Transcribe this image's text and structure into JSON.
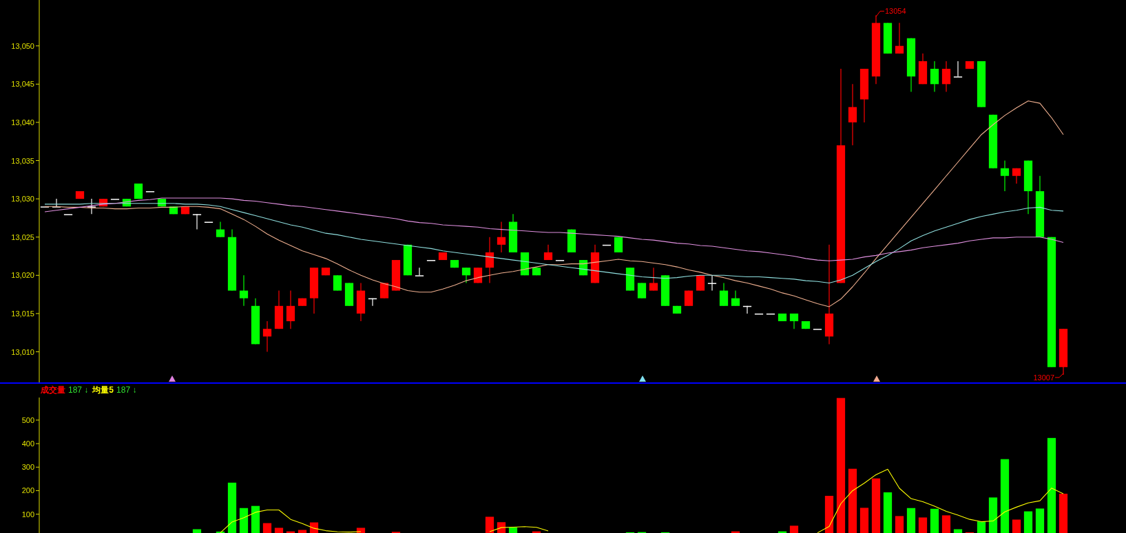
{
  "chart_data": [
    {
      "type": "candlestick",
      "categories": [
        null,
        null,
        null,
        null,
        null,
        null,
        null,
        null,
        null,
        null,
        null,
        null,
        null,
        null,
        null,
        null,
        null,
        null,
        null,
        null,
        null,
        null,
        null,
        null,
        null,
        null,
        null,
        null,
        null,
        null,
        null,
        null,
        null,
        null,
        null,
        null,
        null,
        null,
        null,
        null,
        null,
        null,
        null,
        null,
        null,
        null,
        null,
        null,
        null,
        null,
        null,
        null,
        null,
        null,
        null,
        null,
        null,
        null,
        null,
        null,
        null,
        null,
        null,
        null,
        null,
        null,
        null,
        null,
        null,
        null,
        null,
        null,
        null,
        null,
        null,
        null,
        null,
        null,
        null,
        null,
        null,
        null,
        null,
        null,
        null,
        null,
        null,
        null
      ],
      "ohlc": [
        [
          13029,
          13029,
          13029,
          13029
        ],
        [
          13029,
          13030,
          13029,
          13029
        ],
        [
          13028,
          13028,
          13028,
          13028
        ],
        [
          13030,
          13031,
          13030,
          13031
        ],
        [
          13029,
          13030,
          13028,
          13029
        ],
        [
          13029,
          13030,
          13029,
          13030
        ],
        [
          13030,
          13030,
          13030,
          13030
        ],
        [
          13030,
          13030,
          13029,
          13029
        ],
        [
          13032,
          13032,
          13030,
          13030
        ],
        [
          13031,
          13031,
          13031,
          13031
        ],
        [
          13030,
          13030,
          13029,
          13029
        ],
        [
          13029,
          13029,
          13028,
          13028
        ],
        [
          13028,
          13029,
          13028,
          13029
        ],
        [
          13028,
          13028,
          13026,
          13028
        ],
        [
          13027,
          13027,
          13027,
          13027
        ],
        [
          13026,
          13027,
          13025,
          13025
        ],
        [
          13025,
          13026,
          13018,
          13018
        ],
        [
          13018,
          13020,
          13016,
          13017
        ],
        [
          13016,
          13017,
          13011,
          13011
        ],
        [
          13012,
          13014,
          13010,
          13013
        ],
        [
          13013,
          13018,
          13013,
          13016
        ],
        [
          13014,
          13018,
          13013,
          13016
        ],
        [
          13016,
          13017,
          13016,
          13017
        ],
        [
          13017,
          13021,
          13015,
          13021
        ],
        [
          13020,
          13021,
          13020,
          13021
        ],
        [
          13020,
          13020,
          13018,
          13018
        ],
        [
          13019,
          13019,
          13016,
          13016
        ],
        [
          13015,
          13019,
          13014,
          13018
        ],
        [
          13017,
          13017,
          13016,
          13017
        ],
        [
          13017,
          13019,
          13017,
          13019
        ],
        [
          13018,
          13022,
          13018,
          13022
        ],
        [
          13024,
          13024,
          13020,
          13020
        ],
        [
          13020,
          13021,
          13020,
          13020
        ],
        [
          13022,
          13022,
          13022,
          13022
        ],
        [
          13022,
          13023,
          13022,
          13023
        ],
        [
          13022,
          13022,
          13021,
          13021
        ],
        [
          13021,
          13021,
          13019,
          13020
        ],
        [
          13019,
          13021,
          13019,
          13021
        ],
        [
          13021,
          13025,
          13019,
          13023
        ],
        [
          13024,
          13027,
          13023,
          13025
        ],
        [
          13027,
          13028,
          13023,
          13023
        ],
        [
          13023,
          13023,
          13020,
          13020
        ],
        [
          13021,
          13021,
          13020,
          13020
        ],
        [
          13022,
          13024,
          13022,
          13023
        ],
        [
          13022,
          13022,
          13022,
          13022
        ],
        [
          13026,
          13026,
          13023,
          13023
        ],
        [
          13022,
          13022,
          13020,
          13020
        ],
        [
          13019,
          13024,
          13019,
          13023
        ],
        [
          13024,
          13024,
          13024,
          13024
        ],
        [
          13025,
          13025,
          13023,
          13023
        ],
        [
          13021,
          13021,
          13018,
          13018
        ],
        [
          13019,
          13019,
          13017,
          13017
        ],
        [
          13018,
          13021,
          13018,
          13019
        ],
        [
          13020,
          13020,
          13016,
          13016
        ],
        [
          13016,
          13016,
          13015,
          13015
        ],
        [
          13016,
          13018,
          13016,
          13018
        ],
        [
          13018,
          13020,
          13018,
          13020
        ],
        [
          13019,
          13020,
          13018,
          13019
        ],
        [
          13018,
          13019,
          13016,
          13016
        ],
        [
          13017,
          13018,
          13016,
          13016
        ],
        [
          13016,
          13016,
          13015,
          13016
        ],
        [
          13015,
          13015,
          13015,
          13015
        ],
        [
          13015,
          13015,
          13015,
          13015
        ],
        [
          13015,
          13015,
          13014,
          13014
        ],
        [
          13015,
          13015,
          13013,
          13014
        ],
        [
          13014,
          13014,
          13013,
          13013
        ],
        [
          13013,
          13013,
          13013,
          13013
        ],
        [
          13012,
          13024,
          13011,
          13015
        ],
        [
          13019,
          13047,
          13019,
          13037
        ],
        [
          13040,
          13045,
          13037,
          13042
        ],
        [
          13043,
          13047,
          13040,
          13047
        ],
        [
          13046,
          13054,
          13045,
          13053
        ],
        [
          13053,
          13053,
          13049,
          13049
        ],
        [
          13049,
          13053,
          13049,
          13050
        ],
        [
          13051,
          13051,
          13044,
          13046
        ],
        [
          13045,
          13049,
          13045,
          13048
        ],
        [
          13047,
          13048,
          13044,
          13045
        ],
        [
          13045,
          13048,
          13044,
          13047
        ],
        [
          13046,
          13048,
          13046,
          13046
        ],
        [
          13047,
          13048,
          13047,
          13048
        ],
        [
          13048,
          13048,
          13042,
          13042
        ],
        [
          13041,
          13041,
          13034,
          13034
        ],
        [
          13034,
          13035,
          13031,
          13033
        ],
        [
          13033,
          13034,
          13032,
          13034
        ],
        [
          13035,
          13035,
          13028,
          13031
        ],
        [
          13031,
          13033,
          13025,
          13025
        ],
        [
          13025,
          13025,
          13008,
          13008
        ],
        [
          13008,
          13013,
          13007,
          13013
        ]
      ],
      "colors": [
        "#ffffff",
        "#ffffff",
        "#ffffff",
        "#ff0000",
        "#ffffff",
        "#ff0000",
        "#ffffff",
        "#00ff00",
        "#00ff00",
        "#ffffff",
        "#00ff00",
        "#00ff00",
        "#ff0000",
        "#ffffff",
        "#ffffff",
        "#00ff00",
        "#00ff00",
        "#00ff00",
        "#00ff00",
        "#ff0000",
        "#ff0000",
        "#ff0000",
        "#ff0000",
        "#ff0000",
        "#ff0000",
        "#00ff00",
        "#00ff00",
        "#ff0000",
        "#ffffff",
        "#ff0000",
        "#ff0000",
        "#00ff00",
        "#ffffff",
        "#ffffff",
        "#ff0000",
        "#00ff00",
        "#00ff00",
        "#ff0000",
        "#ff0000",
        "#ff0000",
        "#00ff00",
        "#00ff00",
        "#00ff00",
        "#ff0000",
        "#ffffff",
        "#00ff00",
        "#00ff00",
        "#ff0000",
        "#ffffff",
        "#00ff00",
        "#00ff00",
        "#00ff00",
        "#ff0000",
        "#00ff00",
        "#00ff00",
        "#ff0000",
        "#ff0000",
        "#ffffff",
        "#00ff00",
        "#00ff00",
        "#ffffff",
        "#ffffff",
        "#ffffff",
        "#00ff00",
        "#00ff00",
        "#00ff00",
        "#ffffff",
        "#ff0000",
        "#ff0000",
        "#ff0000",
        "#ff0000",
        "#ff0000",
        "#00ff00",
        "#ff0000",
        "#00ff00",
        "#ff0000",
        "#00ff00",
        "#ff0000",
        "#ffffff",
        "#ff0000",
        "#00ff00",
        "#00ff00",
        "#00ff00",
        "#ff0000",
        "#00ff00",
        "#00ff00",
        "#00ff00",
        "#ff0000"
      ],
      "series": [
        {
          "type": "line",
          "color": "#f0b090",
          "values": [
            13029.0,
            13029.0,
            13028.9,
            13028.9,
            13028.8,
            13028.8,
            13028.7,
            13028.7,
            13028.8,
            13028.8,
            13028.9,
            13028.9,
            13029.0,
            13029.0,
            13028.9,
            13028.7,
            13028.0,
            13027.3,
            13026.4,
            13025.4,
            13024.6,
            13023.9,
            13023.2,
            13022.7,
            13022.2,
            13021.5,
            13020.7,
            13020.0,
            13019.4,
            13018.9,
            13018.5,
            13018.0,
            13017.8,
            13017.8,
            13018.2,
            13018.7,
            13019.3,
            13019.7,
            13020.0,
            13020.3,
            13020.5,
            13020.8,
            13021.1,
            13021.4,
            13021.4,
            13021.5,
            13021.5,
            13021.7,
            13021.9,
            13022.1,
            13021.9,
            13021.8,
            13021.6,
            13021.4,
            13021.1,
            13020.7,
            13020.4,
            13020.0,
            13019.7,
            13019.3,
            13019.0,
            13018.6,
            13018.2,
            13017.7,
            13017.3,
            13016.8,
            13016.3,
            13015.9,
            13016.9,
            13018.5,
            13020.3,
            13022.2,
            13024.0,
            13025.8,
            13027.6,
            13029.4,
            13031.2,
            13033.0,
            13034.8,
            13036.6,
            13038.4,
            13039.7,
            13040.9,
            13041.9,
            13042.8,
            13042.5,
            13040.6,
            13038.4
          ]
        },
        {
          "type": "line",
          "color": "#90e0e0",
          "values": [
            13029.3,
            13029.3,
            13029.3,
            13029.3,
            13029.4,
            13029.4,
            13029.4,
            13029.4,
            13029.4,
            13029.4,
            13029.4,
            13029.4,
            13029.3,
            13029.3,
            13029.2,
            13029.0,
            13028.6,
            13028.2,
            13027.8,
            13027.4,
            13027.0,
            13026.6,
            13026.3,
            13025.9,
            13025.5,
            13025.3,
            13025.0,
            13024.7,
            13024.5,
            13024.3,
            13024.1,
            13023.9,
            13023.7,
            13023.5,
            13023.2,
            13023.0,
            13022.8,
            13022.6,
            13022.4,
            13022.2,
            13022.0,
            13021.8,
            13021.6,
            13021.4,
            13021.2,
            13021.0,
            13020.8,
            13020.6,
            13020.4,
            13020.2,
            13020.0,
            13019.8,
            13019.7,
            13019.6,
            13019.7,
            13019.9,
            13020.0,
            13020.0,
            13020.0,
            13019.9,
            13019.8,
            13019.8,
            13019.7,
            13019.6,
            13019.5,
            13019.3,
            13019.2,
            13019.0,
            13019.4,
            13020.0,
            13020.9,
            13021.8,
            13022.6,
            13023.5,
            13024.5,
            13025.2,
            13025.8,
            13026.3,
            13026.8,
            13027.3,
            13027.7,
            13028.0,
            13028.3,
            13028.5,
            13028.8,
            13028.9,
            13028.5,
            13028.4
          ]
        },
        {
          "type": "line",
          "color": "#e090e0",
          "values": [
            13028.3,
            13028.5,
            13028.7,
            13028.9,
            13029.1,
            13029.3,
            13029.4,
            13029.6,
            13029.8,
            13029.9,
            13030.1,
            13030.1,
            13030.1,
            13030.1,
            13030.1,
            13030.1,
            13030.0,
            13029.8,
            13029.7,
            13029.5,
            13029.3,
            13029.1,
            13029.0,
            13028.8,
            13028.6,
            13028.4,
            13028.2,
            13028.0,
            13027.8,
            13027.6,
            13027.4,
            13027.1,
            13026.9,
            13026.8,
            13026.6,
            13026.5,
            13026.4,
            13026.3,
            13026.1,
            13026.0,
            13025.9,
            13025.8,
            13025.7,
            13025.6,
            13025.6,
            13025.5,
            13025.4,
            13025.3,
            13025.2,
            13025.1,
            13024.9,
            13024.7,
            13024.6,
            13024.4,
            13024.2,
            13024.1,
            13023.9,
            13023.8,
            13023.6,
            13023.4,
            13023.2,
            13023.1,
            13022.9,
            13022.7,
            13022.5,
            13022.2,
            13022.0,
            13021.9,
            13022.0,
            13022.1,
            13022.4,
            13022.6,
            13022.9,
            13023.1,
            13023.3,
            13023.6,
            13023.8,
            13024.0,
            13024.2,
            13024.5,
            13024.7,
            13024.9,
            13024.9,
            13025.0,
            13025.0,
            13025.0,
            13024.7,
            13024.3
          ]
        }
      ],
      "ylim": [
        13006,
        13056
      ],
      "yticks": [
        {
          "value": 13010,
          "label": "13,010"
        },
        {
          "value": 13015,
          "label": "13,015"
        },
        {
          "value": 13020,
          "label": "13,020"
        },
        {
          "value": 13025,
          "label": "13,025"
        },
        {
          "value": 13030,
          "label": "13,030"
        },
        {
          "value": 13035,
          "label": "13,035"
        },
        {
          "value": 13040,
          "label": "13,040"
        },
        {
          "value": 13045,
          "label": "13,045"
        },
        {
          "value": 13050,
          "label": "13,050"
        }
      ],
      "tick_labels": "y",
      "annotations": [
        "13054",
        "13007"
      ]
    },
    {
      "type": "bar",
      "categories": [
        null,
        null,
        null,
        null,
        null,
        null,
        null,
        null,
        null,
        null,
        null,
        null,
        null,
        null,
        null,
        null,
        null,
        null,
        null,
        null,
        null,
        null,
        null,
        null,
        null,
        null,
        null,
        null,
        null,
        null,
        null,
        null,
        null,
        null,
        null,
        null,
        null,
        null,
        null,
        null,
        null,
        null,
        null,
        null,
        null,
        null,
        null,
        null,
        null,
        null,
        null,
        null,
        null,
        null,
        null,
        null,
        null,
        null,
        null,
        null,
        null,
        null,
        null,
        null,
        null,
        null,
        null,
        null,
        null,
        null,
        null,
        null,
        null,
        null,
        null,
        null,
        null,
        null,
        null,
        null,
        null,
        null,
        null,
        null,
        null,
        null,
        null,
        null
      ],
      "series": [
        {
          "name": "成交量",
          "color": "#ff0000",
          "values": [
            null,
            null,
            null,
            null,
            null,
            null,
            null,
            null,
            null,
            null,
            null,
            null,
            null,
            36,
            null,
            26,
            234,
            126,
            135,
            62,
            42,
            27,
            33,
            65,
            null,
            null,
            null,
            42,
            null,
            null,
            25,
            null,
            null,
            null,
            null,
            null,
            null,
            null,
            89,
            66,
            44,
            null,
            27,
            null,
            null,
            null,
            null,
            null,
            null,
            null,
            23,
            24,
            null,
            23,
            null,
            null,
            null,
            null,
            null,
            27,
            null,
            null,
            null,
            27,
            51,
            null,
            null,
            178,
            594,
            293,
            127,
            252,
            193,
            92,
            126,
            86,
            123,
            95,
            36,
            23,
            69,
            171,
            334,
            77,
            112,
            124,
            424,
            187
          ],
          "colors": [
            null,
            null,
            null,
            null,
            null,
            null,
            null,
            null,
            null,
            null,
            null,
            null,
            null,
            "#00ff00",
            null,
            "#00ff00",
            "#00ff00",
            "#00ff00",
            "#00ff00",
            "#ff0000",
            "#ff0000",
            "#ff0000",
            "#ff0000",
            "#ff0000",
            null,
            null,
            null,
            "#ff0000",
            null,
            null,
            "#ff0000",
            null,
            null,
            null,
            null,
            null,
            null,
            null,
            "#ff0000",
            "#ff0000",
            "#00ff00",
            null,
            "#ff0000",
            null,
            null,
            null,
            null,
            null,
            null,
            null,
            "#00ff00",
            "#00ff00",
            null,
            "#00ff00",
            null,
            null,
            null,
            null,
            null,
            "#ff0000",
            null,
            null,
            null,
            "#00ff00",
            "#ff0000",
            null,
            null,
            "#ff0000",
            "#ff0000",
            "#ff0000",
            "#ff0000",
            "#ff0000",
            "#00ff00",
            "#ff0000",
            "#00ff00",
            "#ff0000",
            "#00ff00",
            "#ff0000",
            "#00ff00",
            "#ff0000",
            "#00ff00",
            "#00ff00",
            "#00ff00",
            "#ff0000",
            "#00ff00",
            "#00ff00",
            "#00ff00",
            "#ff0000"
          ]
        },
        {
          "type": "line",
          "name": "均量5",
          "color": "#ffff00",
          "values": [
            null,
            null,
            null,
            null,
            null,
            null,
            null,
            null,
            null,
            null,
            null,
            null,
            null,
            null,
            null,
            21,
            67,
            85,
            108,
            118,
            118,
            78,
            60,
            40,
            30,
            25,
            24,
            26,
            null,
            null,
            null,
            null,
            null,
            null,
            null,
            null,
            null,
            null,
            26,
            43,
            45,
            47,
            44,
            29,
            null,
            null,
            null,
            null,
            null,
            null,
            null,
            null,
            null,
            null,
            null,
            null,
            null,
            null,
            null,
            null,
            null,
            null,
            null,
            null,
            null,
            null,
            21,
            48,
            145,
            200,
            232,
            268,
            291,
            210,
            166,
            153,
            134,
            112,
            96,
            78,
            68,
            71,
            110,
            130,
            148,
            157,
            211,
            187
          ]
        }
      ],
      "ylim": [
        20,
        596
      ],
      "yticks": [
        100,
        200,
        300,
        400,
        500
      ],
      "tick_labels": "y",
      "annotations": [
        "187 ↓",
        "187 ↓"
      ]
    }
  ]
}
